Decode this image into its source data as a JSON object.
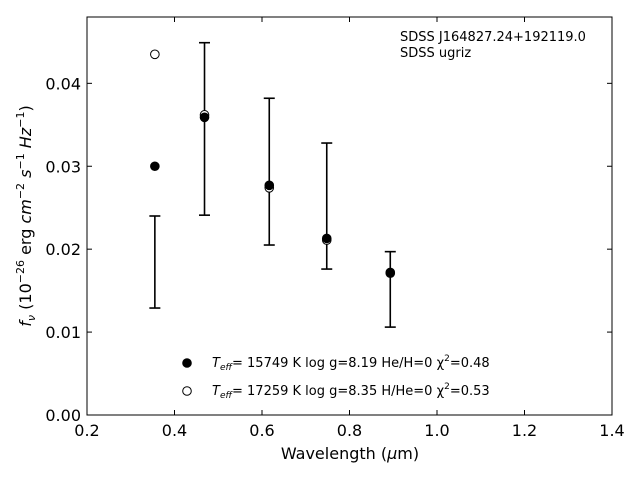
{
  "chart_data": {
    "type": "scatter",
    "xlabel": "Wavelength (μm)",
    "ylabel": "f_ν (10^-26 erg cm^-2 s^-1 Hz^-1)",
    "xlim": [
      0.2,
      1.4
    ],
    "ylim": [
      0.0,
      0.048
    ],
    "xticks": [
      "0.2",
      "0.4",
      "0.6",
      "0.8",
      "1.0",
      "1.2",
      "1.4"
    ],
    "yticks": [
      "0.00",
      "0.01",
      "0.02",
      "0.03",
      "0.04"
    ],
    "annotation": [
      "SDSS J164827.24+192119.0",
      "SDSS ugriz"
    ],
    "observed": {
      "x": [
        0.3551,
        0.4686,
        0.6166,
        0.748,
        0.8932
      ],
      "y_low": [
        0.0129,
        0.0241,
        0.0205,
        0.0176,
        0.0106
      ],
      "y_high": [
        0.024,
        0.0449,
        0.0382,
        0.0328,
        0.0197
      ]
    },
    "series": [
      {
        "name": "T_eff= 15749 K  log g=8.19  He/H=0  χ²=0.48",
        "label_parts": {
          "teff": "T",
          "sub": "eff",
          "rest": "= 15749 K  log g=8.19  He/H=0  χ",
          "sup": "2",
          "tail": "=0.48"
        },
        "marker": "filled-circle",
        "x": [
          0.3551,
          0.4686,
          0.6166,
          0.748,
          0.8932
        ],
        "y": [
          0.03,
          0.0359,
          0.0277,
          0.0213,
          0.0172
        ]
      },
      {
        "name": "T_eff= 17259 K  log g=8.35  H/He=0  χ²=0.53",
        "label_parts": {
          "teff": "T",
          "sub": "eff",
          "rest": "= 17259 K  log g=8.35  H/He=0  χ",
          "sup": "2",
          "tail": "=0.53"
        },
        "marker": "open-circle",
        "x": [
          0.3551,
          0.4686,
          0.6166,
          0.748,
          0.8932
        ],
        "y": [
          0.0435,
          0.0362,
          0.0274,
          0.0211,
          0.0171
        ]
      }
    ],
    "grid": false
  }
}
